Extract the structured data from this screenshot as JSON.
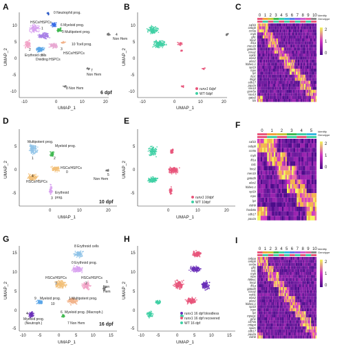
{
  "panels": [
    {
      "id": "A",
      "xlabel": "UMAP_1",
      "ylabel": "UMAP_2",
      "xticks": [
        "-10",
        "0",
        "10",
        "20"
      ],
      "yticks": [
        "10",
        "5",
        "0",
        "-5",
        "-10"
      ],
      "stage": "6 dpf",
      "labels": [
        "0 Neutrophil prog.",
        "HSCs/HSPCs",
        "6 Myeloid prog.",
        "0 Multipotent prog.",
        "1",
        "4",
        "Non Hem",
        "10 Tcell prog.",
        "2",
        "Erythroid cells",
        "5",
        "Dividing HSPCs",
        "3",
        "HSCs/HSPCs",
        "7",
        "Non Hem",
        "8 Non Hem"
      ]
    },
    {
      "id": "B",
      "xlabel": "UMAP_1",
      "ylabel": "UMAP_2",
      "xticks": [
        "-10",
        "0",
        "10",
        "20"
      ],
      "yticks": [
        "10",
        "5",
        "0",
        "-5",
        "-10"
      ],
      "legend": [
        "runx1 6dpf",
        "WT 6dpf"
      ]
    },
    {
      "id": "C",
      "columns": [
        "0",
        "1",
        "2",
        "3",
        "4",
        "5",
        "6",
        "7",
        "8",
        "9",
        "10"
      ],
      "bar_labels": [
        "Identity",
        "Genotype"
      ],
      "scale": [
        "2",
        "1",
        "0"
      ],
      "genes": [
        "caf1b",
        "cebpb",
        "ccr9a",
        "myb",
        "gfi1",
        "lmo2",
        "fli1a",
        "mes1b",
        "gata2b",
        "ccna2",
        "cold1",
        "elas2",
        "alas2",
        "hbbe1.1",
        "spi1b",
        "mpx",
        "lyz",
        "lcp1",
        "ifng2",
        "cdh17",
        "pax2a",
        "slin10",
        "gsm5a",
        "sox13",
        "gata3",
        "lck"
      ]
    },
    {
      "id": "D",
      "xlabel": "UMAP_1",
      "ylabel": "UMAP_2",
      "xticks": [
        "0",
        "10",
        "20"
      ],
      "yticks": [
        "5",
        "0",
        "-5"
      ],
      "stage": "10 dpf",
      "labels": [
        "Multipotent prog.",
        "Myeloid prog.",
        "1",
        "2",
        "HSCs/HSPCs",
        "0",
        "5",
        "Non Hem",
        "HSCs/HSPCs",
        "4",
        "3",
        "Erythroid",
        "prog."
      ]
    },
    {
      "id": "E",
      "xlabel": "UMAP_1",
      "ylabel": "UMAP_2",
      "xticks": [
        "0",
        "10",
        "20"
      ],
      "yticks": [
        "5",
        "0",
        "-5"
      ],
      "legend": [
        "runx1 10dpf",
        "WT 10dpf"
      ]
    },
    {
      "id": "F",
      "columns": [
        "0",
        "1",
        "2",
        "3",
        "4",
        "5"
      ],
      "bar_labels": [
        "Identity",
        "Genotype"
      ],
      "scale": [
        "2",
        "1",
        "0"
      ],
      "genes": [
        "caf1b",
        "cebpb",
        "ccr9a",
        "myb",
        "fli1a",
        "tal1",
        "lmo2",
        "mes1b",
        "gata2b",
        "alas2",
        "hbbe1.1",
        "spi1b",
        "mpx",
        "lyz",
        "cldnb",
        "hoxb8a",
        "cdh17",
        "pax2a"
      ]
    },
    {
      "id": "G",
      "xlabel": "UMAP_1",
      "ylabel": "UMAP_2",
      "xticks": [
        "-10",
        "-5",
        "0",
        "5",
        "10",
        "15"
      ],
      "yticks": [
        "15",
        "10",
        "5",
        "0",
        "-5"
      ],
      "stage": "16 dpf",
      "labels": [
        "8 Erythroid cells",
        "0 Erythroid prog.",
        "HSCs/HSPCs",
        "HSCs/HSPCs",
        "3",
        "2",
        "5",
        "Non",
        "Hem",
        "9",
        "Myeloid prog.",
        "1 Multipotent prog.",
        "10",
        "4",
        "6",
        "Myeloid prog. (Macroph.)",
        "Myeloid prog.",
        "(Neutroph.)",
        "7 Non Hem"
      ]
    },
    {
      "id": "H",
      "xlabel": "UMAP_1",
      "ylabel": "UMAP_2",
      "xticks": [
        "-10",
        "-5",
        "0",
        "5",
        "10",
        "15"
      ],
      "yticks": [
        "15",
        "10",
        "5",
        "0",
        "-5"
      ],
      "legend": [
        "runx1 16 dpf bloodless",
        "runx1 16 dpf recovered",
        "WT 16 dpf"
      ]
    },
    {
      "id": "I",
      "columns": [
        "0",
        "1",
        "2",
        "3",
        "4",
        "5",
        "6",
        "7",
        "8",
        "9",
        "10"
      ],
      "bar_labels": [
        "Identity",
        "Genotype"
      ],
      "scale": [
        "2",
        "1",
        "0"
      ],
      "genes": [
        "cebpa",
        "cebpb",
        "ccr9a",
        "gfi1",
        "tal1",
        "myb",
        "mpo",
        "hbbe1",
        "lmo2",
        "fli1a",
        "gata2b",
        "ccna2",
        "cold1",
        "elas2",
        "alas2",
        "hbbe1.1",
        "spi1b",
        "mpx",
        "lyz",
        "mpeg1",
        "grn1",
        "cd74a",
        "mfap4",
        "sparc",
        "cdh17",
        "pax2a",
        "cldnb"
      ]
    }
  ],
  "colors": {
    "runx1": "#e8557a",
    "wt": "#3fd0a4",
    "heat_low": "#4b0c8a",
    "heat_mid": "#cf36c2",
    "heat_high": "#f3f55a"
  }
}
